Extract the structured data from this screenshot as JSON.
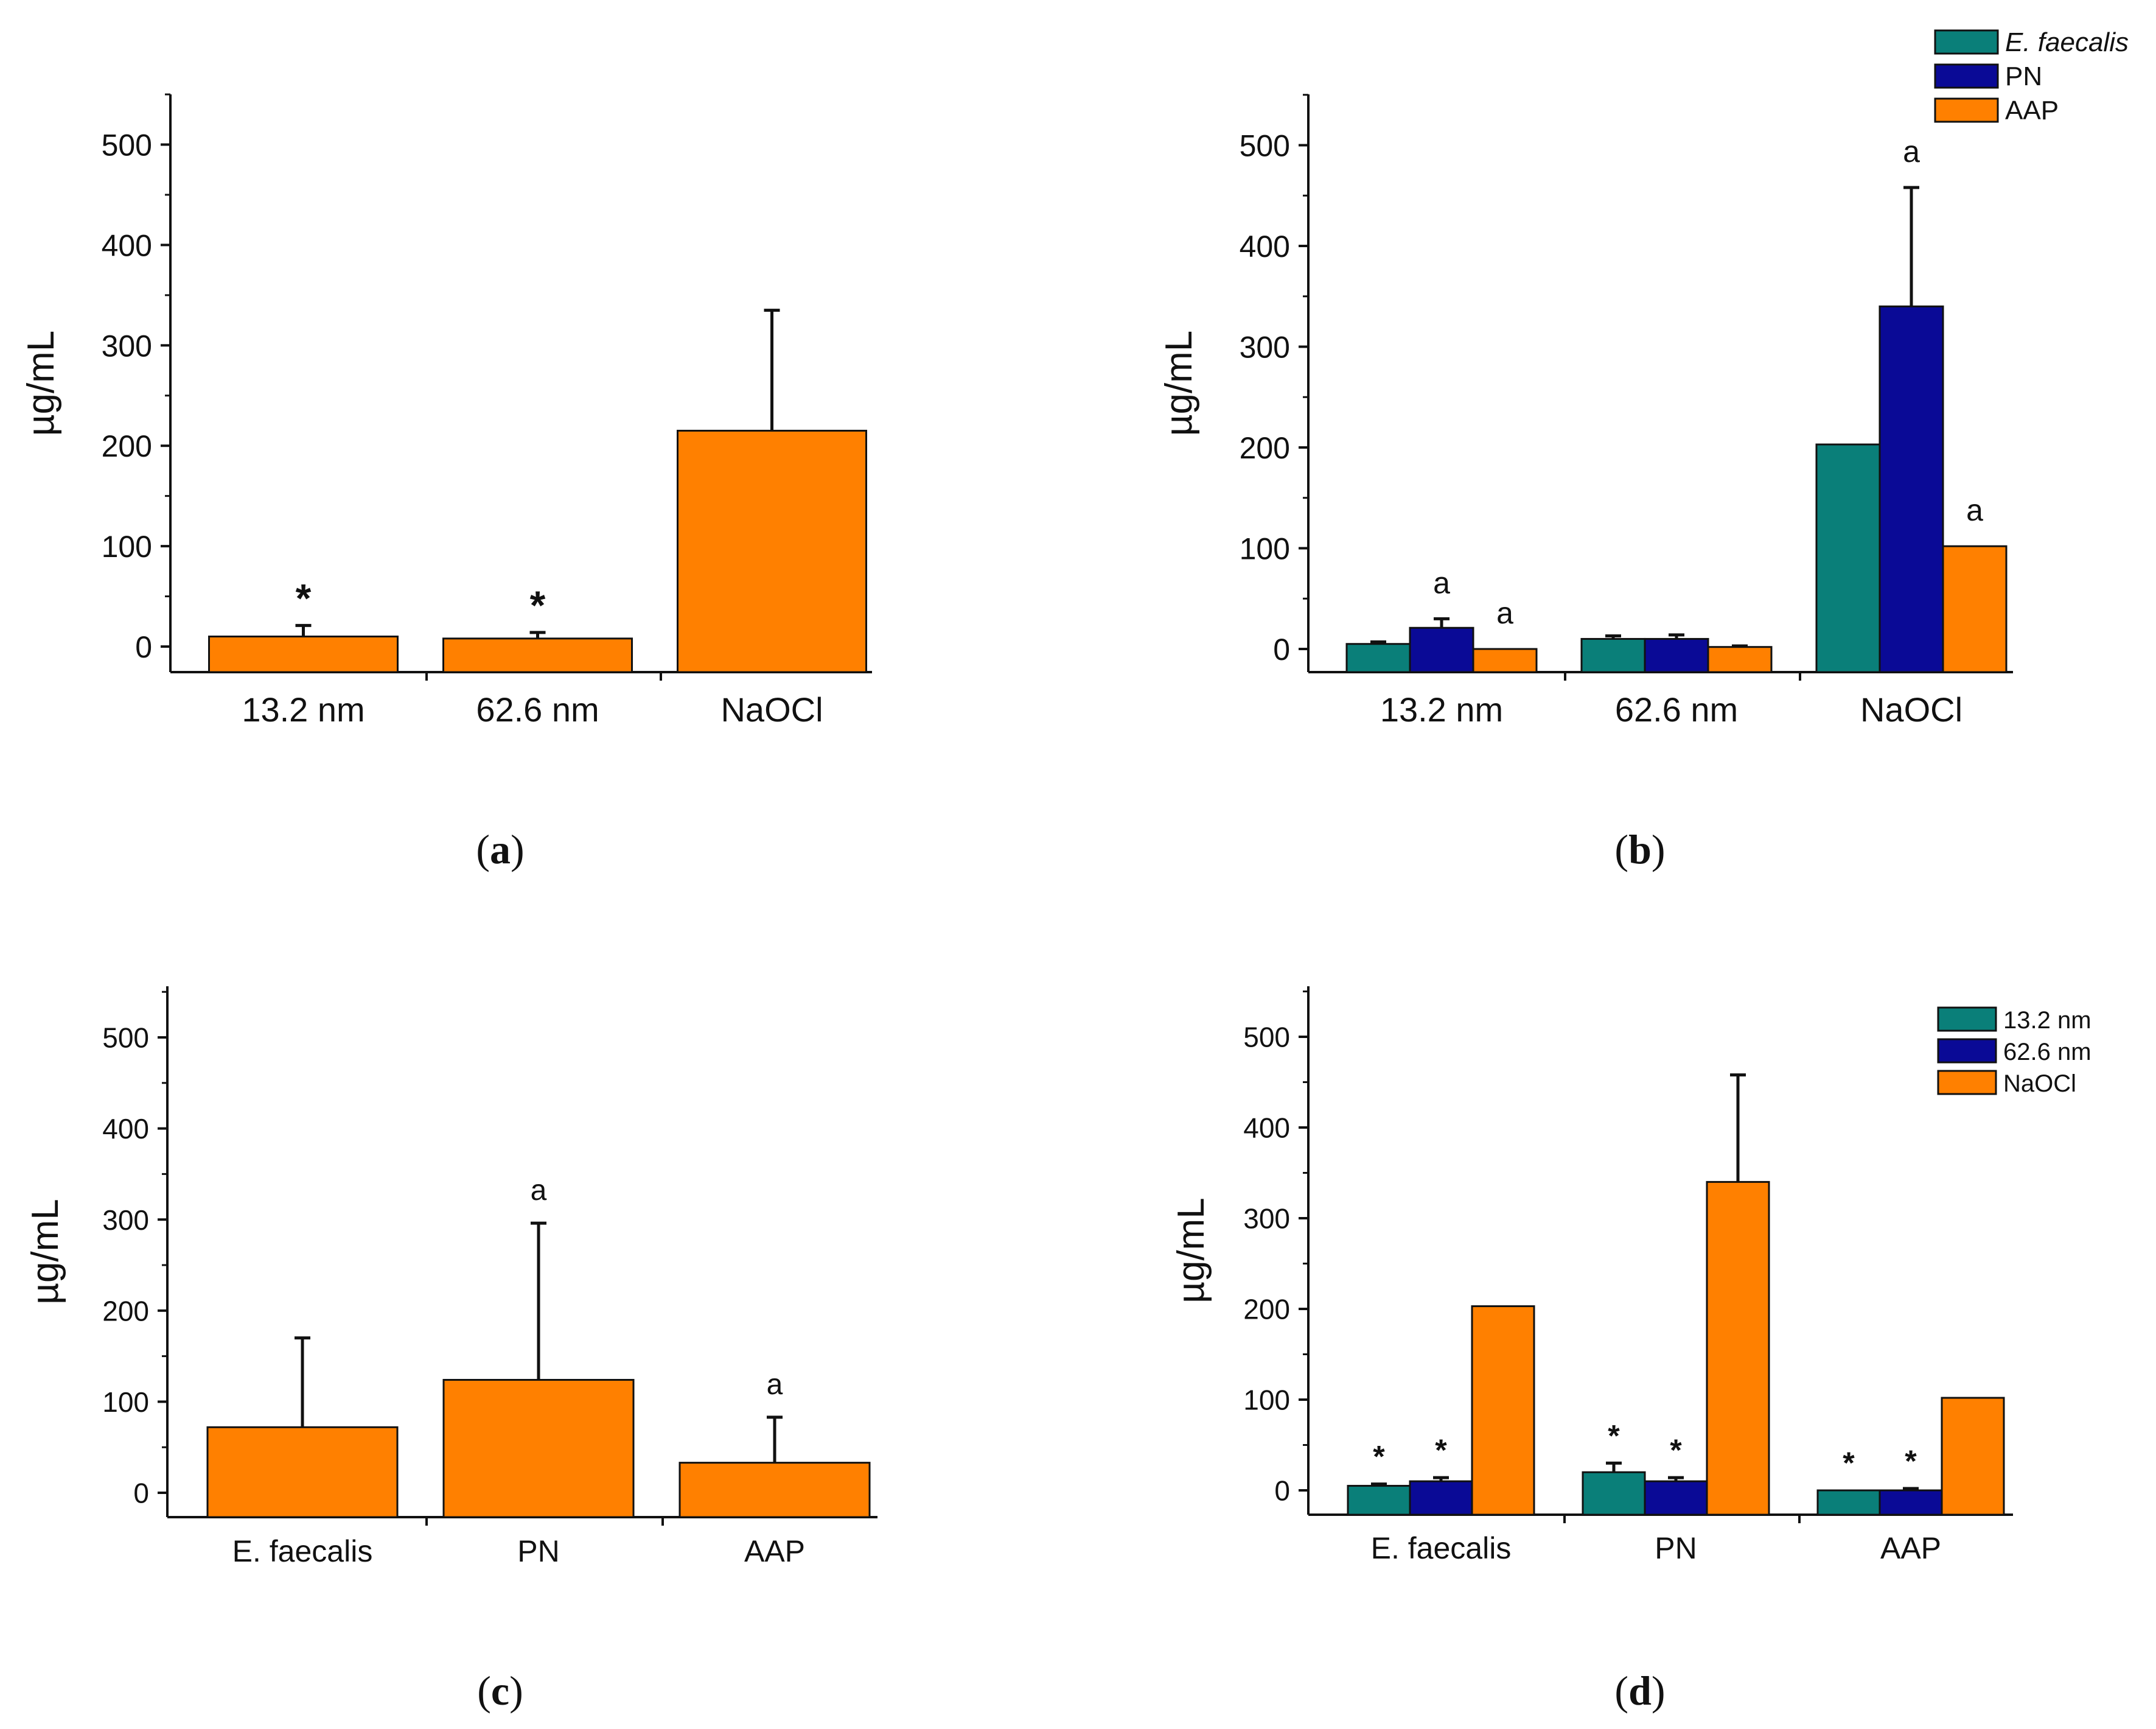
{
  "colors": {
    "teal": "#0a7f79",
    "navy": "#0a0a96",
    "orange": "#ff8000",
    "axis": "#111111"
  },
  "chart_data": [
    {
      "id": "a",
      "type": "bar",
      "panel_label": "(a)",
      "ylabel": "µg/mL",
      "ylim": [
        -25,
        550
      ],
      "yticks": [
        0,
        100,
        200,
        300,
        400,
        500
      ],
      "categories": [
        "13.2 nm",
        "62.6 nm",
        "NaOCl"
      ],
      "series": [
        {
          "name": "",
          "color": "orange",
          "values": [
            10,
            8,
            215
          ],
          "errors": [
            11,
            6,
            120
          ]
        }
      ],
      "annotations": [
        {
          "category": 0,
          "series": 0,
          "text": "*"
        },
        {
          "category": 1,
          "series": 0,
          "text": "*"
        }
      ],
      "legend": null
    },
    {
      "id": "b",
      "type": "bar",
      "panel_label": "(b)",
      "ylabel": "µg/mL",
      "ylim": [
        -25,
        550
      ],
      "yticks": [
        0,
        100,
        200,
        300,
        400,
        500
      ],
      "categories": [
        "13.2 nm",
        "62.6 nm",
        "NaOCl"
      ],
      "series": [
        {
          "name": "E. faecalis",
          "italic": true,
          "color": "teal",
          "values": [
            5,
            10,
            203
          ],
          "errors": [
            2,
            3,
            0
          ]
        },
        {
          "name": "PN",
          "color": "navy",
          "values": [
            21,
            10,
            340
          ],
          "errors": [
            9,
            4,
            118
          ]
        },
        {
          "name": "AAP",
          "color": "orange",
          "values": [
            0,
            2,
            102
          ],
          "errors": [
            0,
            1,
            0
          ]
        }
      ],
      "annotations": [
        {
          "category": 0,
          "series": 1,
          "text": "a"
        },
        {
          "category": 0,
          "series": 2,
          "text": "a"
        },
        {
          "category": 2,
          "series": 1,
          "text": "a"
        },
        {
          "category": 2,
          "series": 2,
          "text": "a"
        }
      ],
      "legend": "top-right"
    },
    {
      "id": "c",
      "type": "bar",
      "panel_label": "(c)",
      "ylabel": "µg/mL",
      "ylim": [
        -28,
        550
      ],
      "yticks": [
        0,
        100,
        200,
        300,
        400,
        500
      ],
      "categories": [
        "E. faecalis",
        "PN",
        "AAP"
      ],
      "series": [
        {
          "name": "",
          "color": "orange",
          "values": [
            72,
            124,
            33
          ],
          "errors": [
            98,
            172,
            50
          ]
        }
      ],
      "annotations": [
        {
          "category": 1,
          "series": 0,
          "text": "a"
        },
        {
          "category": 2,
          "series": 0,
          "text": "a"
        }
      ],
      "legend": null
    },
    {
      "id": "d",
      "type": "bar",
      "panel_label": "(d)",
      "ylabel": "µg/mL",
      "ylim": [
        -28,
        550
      ],
      "yticks": [
        0,
        100,
        200,
        300,
        400,
        500
      ],
      "categories": [
        "E. faecalis",
        "PN",
        "AAP"
      ],
      "series": [
        {
          "name": "13.2 nm",
          "color": "teal",
          "values": [
            5,
            20,
            0
          ],
          "errors": [
            2,
            10,
            0
          ]
        },
        {
          "name": "62.6 nm",
          "color": "navy",
          "values": [
            10,
            10,
            0
          ],
          "errors": [
            4,
            4,
            2
          ]
        },
        {
          "name": "NaOCl",
          "color": "orange",
          "values": [
            203,
            340,
            102
          ],
          "errors": [
            0,
            118,
            0
          ]
        }
      ],
      "annotations": [
        {
          "category": 0,
          "series": 0,
          "text": "*"
        },
        {
          "category": 0,
          "series": 1,
          "text": "*"
        },
        {
          "category": 1,
          "series": 0,
          "text": "*"
        },
        {
          "category": 1,
          "series": 1,
          "text": "*"
        },
        {
          "category": 2,
          "series": 0,
          "text": "*"
        },
        {
          "category": 2,
          "series": 1,
          "text": "*"
        }
      ],
      "legend": "top-right"
    }
  ]
}
